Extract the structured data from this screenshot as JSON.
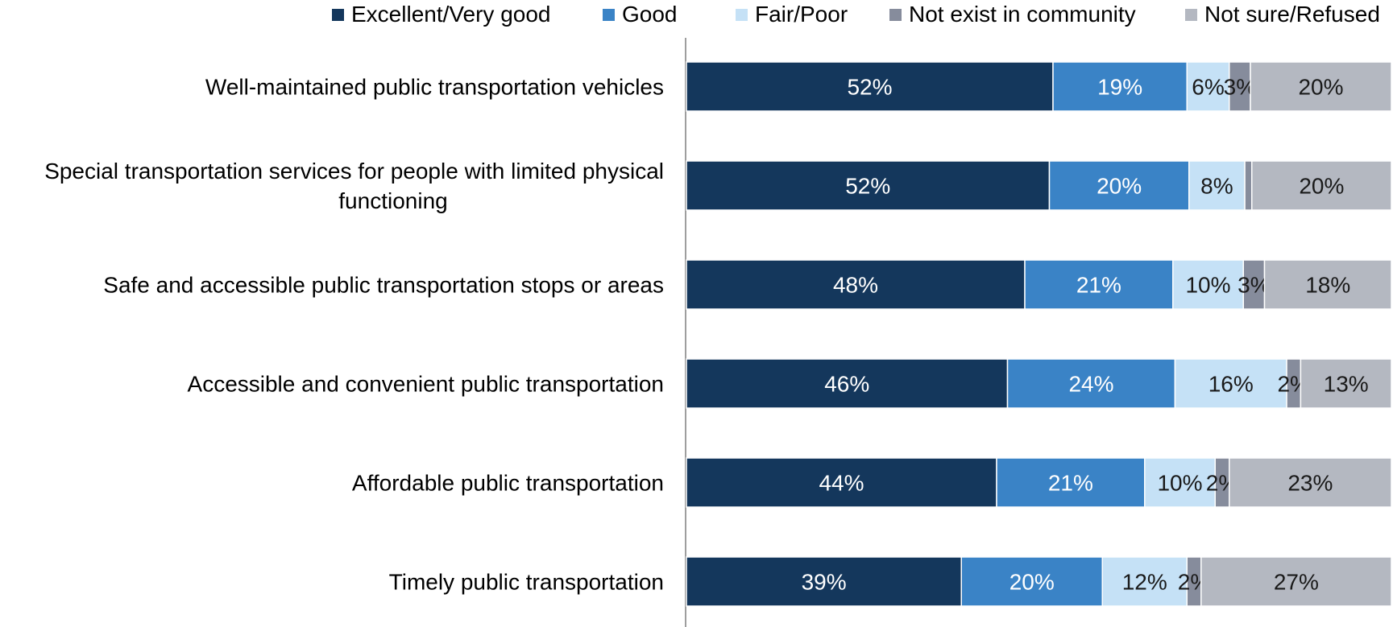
{
  "chart_data": {
    "type": "bar",
    "orientation": "horizontal",
    "stacked": true,
    "percent_stacked": true,
    "legend_position": "top",
    "grid": false,
    "xlim": [
      0,
      100
    ],
    "categories": [
      "Well-maintained public transportation vehicles",
      "Special transportation services for people with limited physical functioning",
      "Safe and accessible public transportation stops or areas",
      "Accessible and convenient public transportation",
      "Affordable public transportation",
      "Timely public transportation"
    ],
    "series": [
      {
        "name": "Excellent/Very good",
        "color": "#14375c",
        "values": [
          52,
          52,
          48,
          46,
          44,
          39
        ],
        "labels": [
          "52%",
          "52%",
          "48%",
          "46%",
          "44%",
          "39%"
        ]
      },
      {
        "name": "Good",
        "color": "#3a83c6",
        "values": [
          19,
          20,
          21,
          24,
          21,
          20
        ],
        "labels": [
          "19%",
          "20%",
          "21%",
          "24%",
          "21%",
          "20%"
        ]
      },
      {
        "name": "Fair/Poor",
        "color": "#c5e1f6",
        "values": [
          6,
          8,
          10,
          16,
          10,
          12
        ],
        "labels": [
          "6%",
          "8%",
          "10%",
          "16%",
          "10%",
          "12%"
        ]
      },
      {
        "name": "Not exist in community",
        "color": "#868c9c",
        "values": [
          3,
          1,
          3,
          2,
          2,
          2
        ],
        "labels": [
          "3%",
          "",
          "3%",
          "2%",
          "2%",
          "2%"
        ]
      },
      {
        "name": "Not sure/Refused",
        "color": "#b4b8c1",
        "values": [
          20,
          20,
          18,
          13,
          23,
          27
        ],
        "labels": [
          "20%",
          "20%",
          "18%",
          "13%",
          "23%",
          "27%"
        ]
      }
    ]
  }
}
